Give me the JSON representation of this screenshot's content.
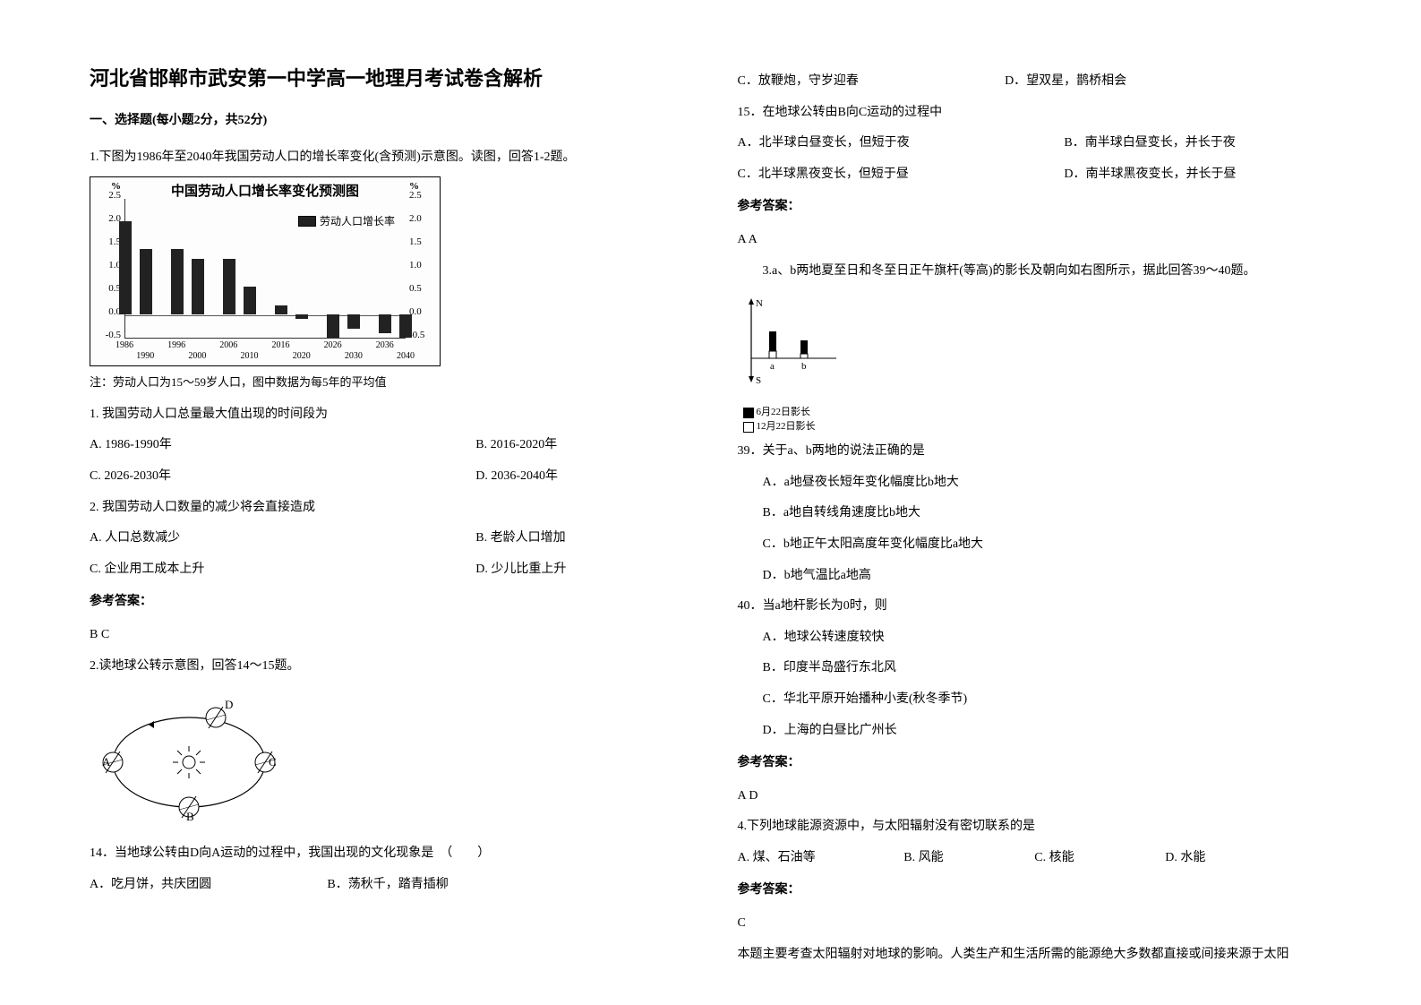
{
  "title": "河北省邯郸市武安第一中学高一地理月考试卷含解析",
  "section1": "一、选择题(每小题2分，共52分)",
  "q1_intro": "1.下图为1986年至2040年我国劳动人口的增长率变化(含预测)示意图。读图，回答1-2题。",
  "chart": {
    "title": "中国劳动人口增长率变化预测图",
    "y_unit_left": "%",
    "y_unit_right": "%",
    "ylim": [
      -0.5,
      2.5
    ],
    "yticks": [
      -0.5,
      0.0,
      0.5,
      1.0,
      1.5,
      2.0,
      2.5
    ],
    "x_years_top": [
      "1986",
      "1996",
      "2006",
      "2016",
      "2036"
    ],
    "x_years_bot": [
      "1990",
      "2000",
      "2010",
      "2020",
      "2026",
      "2040"
    ],
    "x_years_bot2": [
      "2030"
    ],
    "values": [
      {
        "year": 1986,
        "v": 2.0
      },
      {
        "year": 1990,
        "v": 1.4
      },
      {
        "year": 1996,
        "v": 1.4
      },
      {
        "year": 2000,
        "v": 1.2
      },
      {
        "year": 2006,
        "v": 1.2
      },
      {
        "year": 2010,
        "v": 0.6
      },
      {
        "year": 2016,
        "v": 0.2
      },
      {
        "year": 2020,
        "v": -0.1
      },
      {
        "year": 2026,
        "v": -0.5
      },
      {
        "year": 2030,
        "v": -0.3
      },
      {
        "year": 2036,
        "v": -0.4
      },
      {
        "year": 2040,
        "v": -0.5
      }
    ],
    "legend": "劳动人口增长率",
    "note": "注：劳动人口为15～59岁人口，图中数据为每5年的平均值",
    "bar_color": "#222222",
    "grid_color": "#e0e0e0"
  },
  "q1_1": "1. 我国劳动人口总量最大值出现的时间段为",
  "q1_1_opts": {
    "A": "A. 1986-1990年",
    "B": "B. 2016-2020年",
    "C": "C. 2026-2030年",
    "D": "D. 2036-2040年"
  },
  "q1_2": "2. 我国劳动人口数量的减少将会直接造成",
  "q1_2_opts": {
    "A": "A. 人口总数减少",
    "B": "B. 老龄人口增加",
    "C": "C. 企业用工成本上升",
    "D": "D. 少儿比重上升"
  },
  "ans_label": "参考答案：",
  "q1_ans": "B  C",
  "q2_intro": "2.读地球公转示意图，回答14～15题。",
  "orbit_labels": {
    "A": "A",
    "B": "B",
    "C": "C",
    "D": "D"
  },
  "q14": "14．当地球公转由D向A运动的过程中，我国出现的文化现象是　（　　）",
  "q14_opts": {
    "A": "A．吃月饼，共庆团圆",
    "B": "B．荡秋千，踏青插柳",
    "C": "C．放鞭炮，守岁迎春",
    "D": "D．望双星，鹊桥相会"
  },
  "q15": "15．在地球公转由B向C运动的过程中",
  "q15_opts": {
    "A": "A．北半球白昼变长，但短于夜",
    "B": "B．南半球白昼变长，并长于夜",
    "C": "C．北半球黑夜变长，但短于昼",
    "D": "D．南半球黑夜变长，并长于昼"
  },
  "q2_ans": "A  A",
  "q3_intro": "3.a、b两地夏至日和冬至日正午旗杆(等高)的影长及朝向如右图所示，据此回答39～40题。",
  "shadow": {
    "N": "N",
    "S": "S",
    "a": "a",
    "b": "b",
    "leg1": "6月22日影长",
    "leg2": "12月22日影长",
    "a_jun": 30,
    "a_dec": 8,
    "b_jun": 20,
    "b_dec": 5
  },
  "q39": "39．关于a、b两地的说法正确的是",
  "q39_opts": {
    "A": "A．a地昼夜长短年变化幅度比b地大",
    "B": "B．a地自转线角速度比b地大",
    "C": "C．b地正午太阳高度年变化幅度比a地大",
    "D": "D．b地气温比a地高"
  },
  "q40": "40．当a地杆影长为0时，则",
  "q40_opts": {
    "A": "A．地球公转速度较快",
    "B": "B．印度半岛盛行东北风",
    "C": "C．华北平原开始播种小麦(秋冬季节)",
    "D": "D．上海的白昼比广州长"
  },
  "q3_ans": "A  D",
  "q4": "4.下列地球能源资源中，与太阳辐射没有密切联系的是",
  "q4_opts": {
    "A": "A. 煤、石油等",
    "B": "B. 风能",
    "C": "C. 核能",
    "D": "D. 水能"
  },
  "q4_ans": "C",
  "q4_exp": "本题主要考查太阳辐射对地球的影响。人类生产和生活所需的能源绝大多数都直接或间接来源于太阳"
}
